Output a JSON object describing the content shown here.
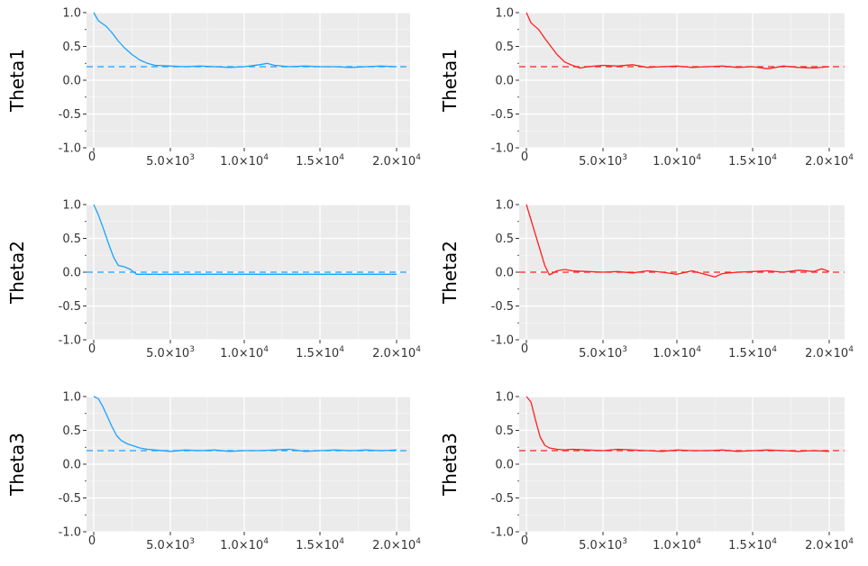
{
  "chart_data": [
    {
      "panel": "top-left",
      "type": "line",
      "ylabel": "Theta1",
      "color": "#1aa3ff",
      "ylim": [
        -1.0,
        1.0
      ],
      "xlim": [
        0,
        20000
      ],
      "grid": true,
      "yticks": [
        "1.0",
        "0.5",
        "0.0",
        "-0.5",
        "-1.0"
      ],
      "xticks": [
        {
          "label": "0"
        },
        {
          "mant": "5.0×10",
          "exp": "3"
        },
        {
          "mant": "1.0×10",
          "exp": "4"
        },
        {
          "mant": "1.5×10",
          "exp": "4"
        },
        {
          "mant": "2.0×10",
          "exp": "4"
        }
      ],
      "reference_line": {
        "y": 0.2,
        "style": "dashed"
      },
      "series": [
        {
          "x": [
            0,
            300,
            800,
            1200,
            1600,
            2000,
            2500,
            3000,
            3500,
            4000,
            5000,
            6000,
            7000,
            8000,
            9000,
            10000,
            11000,
            11500,
            12000,
            13000,
            14000,
            15000,
            16000,
            17000,
            18000,
            19000,
            20000
          ],
          "y": [
            1.0,
            0.88,
            0.8,
            0.7,
            0.58,
            0.48,
            0.38,
            0.3,
            0.25,
            0.22,
            0.21,
            0.2,
            0.21,
            0.2,
            0.19,
            0.2,
            0.23,
            0.25,
            0.22,
            0.2,
            0.21,
            0.2,
            0.2,
            0.19,
            0.2,
            0.21,
            0.2
          ]
        }
      ]
    },
    {
      "panel": "top-right",
      "type": "line",
      "ylabel": "Theta1",
      "color": "#ff2020",
      "ylim": [
        -1.0,
        1.0
      ],
      "xlim": [
        0,
        20000
      ],
      "grid": true,
      "yticks": [
        "1.0",
        "0.5",
        "0.0",
        "-0.5",
        "-1.0"
      ],
      "xticks": [
        {
          "label": "0"
        },
        {
          "mant": "5.0×10",
          "exp": "3"
        },
        {
          "mant": "1.0×10",
          "exp": "4"
        },
        {
          "mant": "1.5×10",
          "exp": "4"
        },
        {
          "mant": "2.0×10",
          "exp": "4"
        }
      ],
      "reference_line": {
        "y": 0.2,
        "style": "dashed"
      },
      "series": [
        {
          "x": [
            0,
            300,
            800,
            1200,
            1600,
            2000,
            2500,
            3000,
            3500,
            4000,
            5000,
            6000,
            7000,
            8000,
            9000,
            10000,
            11000,
            12000,
            13000,
            14000,
            15000,
            16000,
            17000,
            18000,
            19000,
            20000
          ],
          "y": [
            1.0,
            0.85,
            0.75,
            0.62,
            0.5,
            0.38,
            0.27,
            0.22,
            0.18,
            0.2,
            0.22,
            0.21,
            0.23,
            0.19,
            0.2,
            0.21,
            0.19,
            0.2,
            0.21,
            0.19,
            0.2,
            0.17,
            0.21,
            0.19,
            0.18,
            0.2
          ]
        }
      ]
    },
    {
      "panel": "middle-left",
      "type": "line",
      "ylabel": "Theta2",
      "color": "#1aa3ff",
      "ylim": [
        -1.0,
        1.0
      ],
      "xlim": [
        0,
        20000
      ],
      "grid": true,
      "yticks": [
        "1.0",
        "0.5",
        "0.0",
        "-0.5",
        "-1.0"
      ],
      "xticks": [
        {
          "label": "0"
        },
        {
          "mant": "5.0×10",
          "exp": "3"
        },
        {
          "mant": "1.0×10",
          "exp": "4"
        },
        {
          "mant": "1.5×10",
          "exp": "4"
        },
        {
          "mant": "2.0×10",
          "exp": "4"
        }
      ],
      "reference_line": {
        "y": 0.0,
        "style": "dashed"
      },
      "series": [
        {
          "x": [
            0,
            300,
            700,
            1000,
            1300,
            1600,
            2000,
            2400,
            2800,
            3500,
            5000,
            7000,
            10000,
            13000,
            16000,
            20000
          ],
          "y": [
            1.0,
            0.85,
            0.6,
            0.4,
            0.22,
            0.1,
            0.08,
            0.04,
            -0.03,
            -0.03,
            -0.03,
            -0.03,
            -0.03,
            -0.03,
            -0.03,
            -0.03
          ]
        }
      ]
    },
    {
      "panel": "middle-right",
      "type": "line",
      "ylabel": "Theta2",
      "color": "#ff2020",
      "ylim": [
        -1.0,
        1.0
      ],
      "xlim": [
        0,
        20000
      ],
      "grid": true,
      "yticks": [
        "1.0",
        "0.5",
        "0.0",
        "-0.5",
        "-1.0"
      ],
      "xticks": [
        {
          "label": "0"
        },
        {
          "mant": "5.0×10",
          "exp": "3"
        },
        {
          "mant": "1.0×10",
          "exp": "4"
        },
        {
          "mant": "1.5×10",
          "exp": "4"
        },
        {
          "mant": "2.0×10",
          "exp": "4"
        }
      ],
      "reference_line": {
        "y": 0.0,
        "style": "dashed"
      },
      "series": [
        {
          "x": [
            0,
            400,
            800,
            1200,
            1500,
            2000,
            2500,
            3000,
            4000,
            5000,
            6000,
            7000,
            8000,
            9000,
            10000,
            11000,
            12000,
            12500,
            13000,
            14000,
            15000,
            16000,
            17000,
            18000,
            19000,
            19500,
            20000
          ],
          "y": [
            1.0,
            0.7,
            0.4,
            0.1,
            -0.04,
            0.02,
            0.04,
            0.02,
            0.01,
            0.0,
            0.01,
            -0.01,
            0.02,
            0.0,
            -0.03,
            0.02,
            -0.04,
            -0.07,
            -0.02,
            0.0,
            0.01,
            0.02,
            0.0,
            0.03,
            0.01,
            0.05,
            0.01
          ]
        }
      ]
    },
    {
      "panel": "bottom-left",
      "type": "line",
      "ylabel": "Theta3",
      "color": "#1aa3ff",
      "ylim": [
        -1.0,
        1.0
      ],
      "xlim": [
        0,
        20000
      ],
      "grid": true,
      "yticks": [
        "1.0",
        "0.5",
        "0.0",
        "-0.5",
        "-1.0"
      ],
      "xticks": [
        {
          "label": "0"
        },
        {
          "mant": "5.0×10",
          "exp": "3"
        },
        {
          "mant": "1.0×10",
          "exp": "4"
        },
        {
          "mant": "1.5×10",
          "exp": "4"
        },
        {
          "mant": "2.0×10",
          "exp": "4"
        }
      ],
      "reference_line": {
        "y": 0.2,
        "style": "dashed"
      },
      "series": [
        {
          "x": [
            0,
            300,
            600,
            900,
            1200,
            1500,
            1800,
            2200,
            2600,
            3000,
            3500,
            4000,
            5000,
            6000,
            7000,
            8000,
            9000,
            10000,
            11000,
            12000,
            13000,
            14000,
            15000,
            16000,
            17000,
            18000,
            19000,
            20000
          ],
          "y": [
            1.0,
            0.97,
            0.85,
            0.7,
            0.55,
            0.42,
            0.35,
            0.3,
            0.27,
            0.24,
            0.22,
            0.21,
            0.19,
            0.21,
            0.2,
            0.21,
            0.19,
            0.2,
            0.2,
            0.21,
            0.22,
            0.19,
            0.2,
            0.21,
            0.2,
            0.21,
            0.2,
            0.21
          ]
        }
      ]
    },
    {
      "panel": "bottom-right",
      "type": "line",
      "ylabel": "Theta3",
      "color": "#ff2020",
      "ylim": [
        -1.0,
        1.0
      ],
      "xlim": [
        0,
        20000
      ],
      "grid": true,
      "yticks": [
        "1.0",
        "0.5",
        "0.0",
        "-0.5",
        "-1.0"
      ],
      "xticks": [
        {
          "label": "0"
        },
        {
          "mant": "5.0×10",
          "exp": "3"
        },
        {
          "mant": "1.0×10",
          "exp": "4"
        },
        {
          "mant": "1.5×10",
          "exp": "4"
        },
        {
          "mant": "2.0×10",
          "exp": "4"
        }
      ],
      "reference_line": {
        "y": 0.2,
        "style": "dashed"
      },
      "series": [
        {
          "x": [
            0,
            300,
            600,
            900,
            1200,
            1500,
            2000,
            2500,
            3000,
            4000,
            5000,
            6000,
            7000,
            8000,
            9000,
            10000,
            11000,
            12000,
            13000,
            14000,
            15000,
            16000,
            17000,
            18000,
            19000,
            20000
          ],
          "y": [
            1.0,
            0.92,
            0.65,
            0.4,
            0.28,
            0.24,
            0.22,
            0.21,
            0.22,
            0.21,
            0.2,
            0.22,
            0.21,
            0.2,
            0.19,
            0.21,
            0.2,
            0.2,
            0.21,
            0.19,
            0.2,
            0.21,
            0.2,
            0.19,
            0.2,
            0.19
          ]
        }
      ]
    }
  ]
}
